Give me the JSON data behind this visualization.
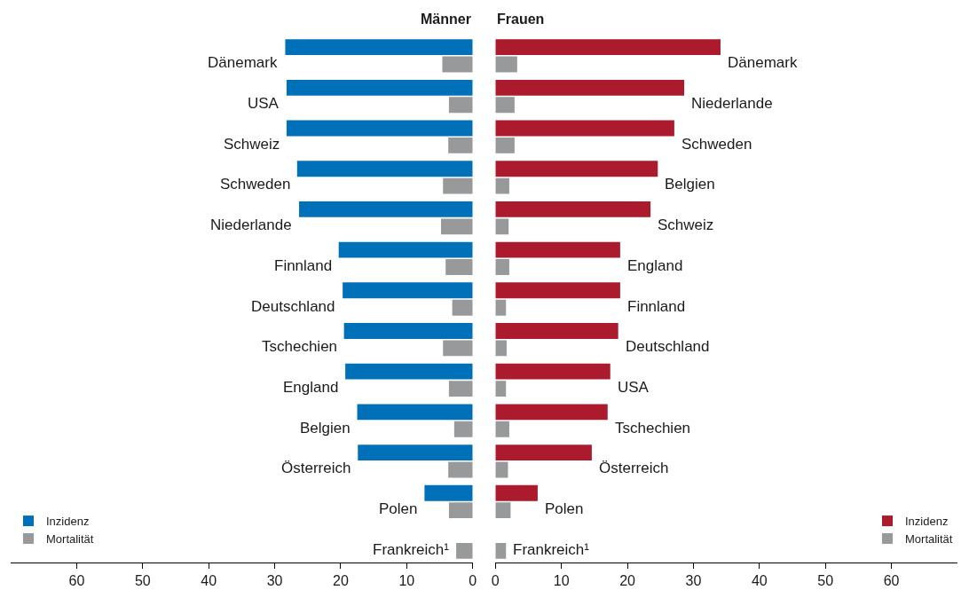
{
  "chart_data": [
    {
      "type": "bar",
      "orientation": "horizontal",
      "title": "Männer",
      "categories": [
        "Dänemark",
        "USA",
        "Schweiz",
        "Schweden",
        "Niederlande",
        "Finnland",
        "Deutschland",
        "Tschechien",
        "England",
        "Belgien",
        "Österreich",
        "Polen",
        "Frankreich¹"
      ],
      "series": [
        {
          "name": "Inzidenz",
          "color": "#0070b8",
          "values": [
            28.4,
            28.2,
            28.2,
            26.6,
            26.3,
            20.3,
            19.7,
            19.5,
            19.3,
            17.5,
            17.4,
            7.3,
            null
          ]
        },
        {
          "name": "Mortalität",
          "color": "#98999b",
          "values": [
            4.6,
            3.6,
            3.7,
            4.5,
            4.8,
            4.1,
            3.1,
            4.5,
            3.6,
            2.8,
            3.7,
            3.6,
            2.5
          ]
        }
      ],
      "xlim": [
        70,
        0
      ],
      "xticks": [
        60,
        50,
        40,
        30,
        20,
        10,
        0
      ],
      "tick_labels": "x",
      "legend": "bottom left"
    },
    {
      "type": "bar",
      "orientation": "horizontal",
      "title": "Frauen",
      "categories": [
        "Dänemark",
        "Niederlande",
        "Schweden",
        "Belgien",
        "Schweiz",
        "England",
        "Finnland",
        "Deutschland",
        "USA",
        "Tschechien",
        "Österreich",
        "Polen",
        "Frankreich¹"
      ],
      "series": [
        {
          "name": "Inzidenz",
          "color": "#ab1a2d",
          "values": [
            34.1,
            28.6,
            27.1,
            24.6,
            23.5,
            18.9,
            18.9,
            18.6,
            17.4,
            17.0,
            14.6,
            6.4,
            null
          ]
        },
        {
          "name": "Mortalität",
          "color": "#98999b",
          "values": [
            3.3,
            2.9,
            2.9,
            2.1,
            2.0,
            2.1,
            1.6,
            1.7,
            1.6,
            2.1,
            1.9,
            2.3,
            1.6
          ]
        }
      ],
      "xlim": [
        0,
        70
      ],
      "xticks": [
        0,
        10,
        20,
        30,
        40,
        50,
        60
      ],
      "tick_labels": "x",
      "legend": "bottom right"
    }
  ]
}
